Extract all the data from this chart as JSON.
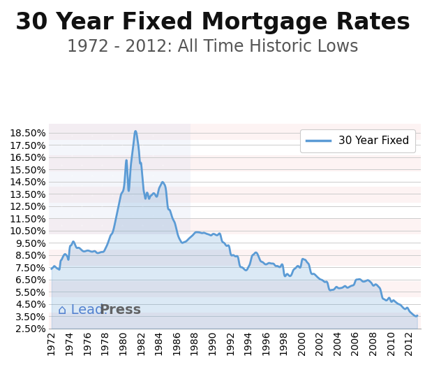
{
  "title": "30 Year Fixed Mortgage Rates",
  "subtitle": "1972 - 2012: All Time Historic Lows",
  "legend_label": "30 Year Fixed",
  "ylim": [
    2.5,
    19.2
  ],
  "ytick_values": [
    2.5,
    3.5,
    4.5,
    5.5,
    6.5,
    7.5,
    8.5,
    9.5,
    10.5,
    11.5,
    12.5,
    13.5,
    14.5,
    15.5,
    16.5,
    17.5,
    18.5
  ],
  "line_color": "#5b9bd5",
  "fill_color": "#5b9bd5",
  "line_width": 2.0,
  "bg_color": "#ffffff",
  "plot_bg_color": "#ffffff",
  "grid_color": "#cccccc",
  "title_fontsize": 24,
  "subtitle_fontsize": 17,
  "tick_fontsize": 10,
  "flag_stripe_color": "#f5c0c0",
  "flag_canton_color": "#d0d8f0",
  "xtick_years": [
    1972,
    1974,
    1976,
    1978,
    1980,
    1982,
    1984,
    1986,
    1988,
    1990,
    1992,
    1994,
    1996,
    1998,
    2000,
    2002,
    2004,
    2006,
    2008,
    2010,
    2012
  ],
  "x": [
    1972.0,
    1972.1,
    1972.2,
    1972.3,
    1972.4,
    1972.5,
    1972.6,
    1972.7,
    1972.8,
    1972.9,
    1973.0,
    1973.1,
    1973.2,
    1973.3,
    1973.4,
    1973.5,
    1973.6,
    1973.7,
    1973.8,
    1973.9,
    1974.0,
    1974.2,
    1974.4,
    1974.6,
    1974.8,
    1975.0,
    1975.3,
    1975.6,
    1975.9,
    1976.0,
    1976.3,
    1976.6,
    1976.9,
    1977.0,
    1977.3,
    1977.6,
    1977.9,
    1978.0,
    1978.2,
    1978.4,
    1978.6,
    1978.8,
    1979.0,
    1979.2,
    1979.4,
    1979.6,
    1979.8,
    1980.0,
    1980.2,
    1980.4,
    1980.6,
    1980.8,
    1981.0,
    1981.1,
    1981.2,
    1981.3,
    1981.4,
    1981.5,
    1981.6,
    1981.7,
    1981.8,
    1981.9,
    1982.0,
    1982.1,
    1982.2,
    1982.3,
    1982.4,
    1982.5,
    1982.6,
    1982.7,
    1982.8,
    1982.9,
    1983.0,
    1983.2,
    1983.4,
    1983.6,
    1983.8,
    1984.0,
    1984.2,
    1984.4,
    1984.6,
    1984.8,
    1985.0,
    1985.2,
    1985.4,
    1985.6,
    1985.8,
    1986.0,
    1986.2,
    1986.4,
    1986.6,
    1986.8,
    1987.0,
    1987.3,
    1987.6,
    1987.9,
    1988.0,
    1988.3,
    1988.6,
    1988.9,
    1989.0,
    1989.3,
    1989.6,
    1989.9,
    1990.0,
    1990.3,
    1990.6,
    1990.9,
    1991.0,
    1991.3,
    1991.6,
    1991.9,
    1992.0,
    1992.3,
    1992.6,
    1992.9,
    1993.0,
    1993.3,
    1993.6,
    1993.9,
    1994.0,
    1994.2,
    1994.4,
    1994.6,
    1994.8,
    1995.0,
    1995.2,
    1995.4,
    1995.6,
    1995.8,
    1996.0,
    1996.3,
    1996.6,
    1996.9,
    1997.0,
    1997.3,
    1997.6,
    1997.9,
    1998.0,
    1998.3,
    1998.6,
    1998.9,
    1999.0,
    1999.3,
    1999.6,
    1999.9,
    2000.0,
    2000.2,
    2000.4,
    2000.6,
    2000.8,
    2001.0,
    2001.3,
    2001.6,
    2001.9,
    2002.0,
    2002.3,
    2002.6,
    2002.9,
    2003.0,
    2003.3,
    2003.6,
    2003.9,
    2004.0,
    2004.3,
    2004.6,
    2004.9,
    2005.0,
    2005.3,
    2005.6,
    2005.9,
    2006.0,
    2006.2,
    2006.4,
    2006.6,
    2006.8,
    2007.0,
    2007.2,
    2007.4,
    2007.6,
    2007.8,
    2008.0,
    2008.2,
    2008.4,
    2008.6,
    2008.8,
    2009.0,
    2009.2,
    2009.4,
    2009.6,
    2009.8,
    2010.0,
    2010.2,
    2010.4,
    2010.6,
    2010.8,
    2011.0,
    2011.2,
    2011.4,
    2011.6,
    2011.8,
    2012.0,
    2012.2,
    2012.4,
    2012.6,
    2012.8,
    2012.9
  ],
  "y": [
    7.38,
    7.45,
    7.52,
    7.6,
    7.55,
    7.48,
    7.42,
    7.38,
    7.35,
    7.38,
    7.96,
    8.1,
    8.25,
    8.4,
    8.52,
    8.58,
    8.54,
    8.45,
    8.3,
    8.15,
    8.9,
    9.3,
    9.6,
    9.4,
    9.1,
    9.1,
    8.95,
    8.8,
    8.85,
    8.87,
    8.82,
    8.78,
    8.8,
    8.72,
    8.68,
    8.75,
    8.85,
    9.0,
    9.3,
    9.7,
    10.1,
    10.3,
    10.8,
    11.5,
    12.2,
    12.9,
    13.5,
    13.74,
    14.8,
    16.2,
    13.8,
    15.2,
    16.63,
    17.2,
    17.8,
    18.45,
    18.63,
    18.45,
    18.0,
    17.5,
    16.8,
    16.0,
    16.04,
    15.4,
    14.6,
    13.8,
    13.45,
    13.1,
    13.44,
    13.6,
    13.4,
    13.1,
    13.24,
    13.4,
    13.55,
    13.42,
    13.3,
    13.88,
    14.2,
    14.47,
    14.3,
    13.8,
    12.43,
    12.2,
    11.8,
    11.4,
    11.1,
    10.5,
    10.0,
    9.7,
    9.5,
    9.55,
    9.6,
    9.8,
    10.0,
    10.21,
    10.3,
    10.37,
    10.34,
    10.3,
    10.32,
    10.25,
    10.18,
    10.13,
    10.2,
    10.18,
    10.15,
    10.13,
    9.8,
    9.5,
    9.25,
    9.1,
    8.7,
    8.5,
    8.39,
    8.2,
    7.8,
    7.5,
    7.31,
    7.35,
    7.5,
    7.8,
    8.38,
    8.55,
    8.7,
    8.63,
    8.3,
    8.0,
    7.93,
    7.8,
    7.74,
    7.85,
    7.81,
    7.75,
    7.65,
    7.6,
    7.55,
    7.52,
    7.0,
    6.94,
    6.8,
    7.0,
    7.2,
    7.44,
    7.6,
    7.65,
    8.05,
    8.15,
    8.1,
    7.9,
    7.7,
    7.1,
    6.97,
    6.8,
    6.6,
    6.54,
    6.45,
    6.3,
    6.15,
    5.83,
    5.65,
    5.7,
    5.9,
    5.84,
    5.8,
    5.87,
    5.95,
    5.87,
    5.9,
    6.0,
    6.2,
    6.41,
    6.5,
    6.53,
    6.48,
    6.35,
    6.34,
    6.4,
    6.45,
    6.35,
    6.2,
    6.0,
    6.1,
    6.05,
    5.9,
    5.65,
    5.04,
    4.9,
    4.8,
    4.88,
    5.0,
    4.69,
    4.8,
    4.72,
    4.6,
    4.5,
    4.45,
    4.3,
    4.15,
    4.1,
    4.2,
    3.95,
    3.8,
    3.66,
    3.55,
    3.5,
    3.55
  ]
}
